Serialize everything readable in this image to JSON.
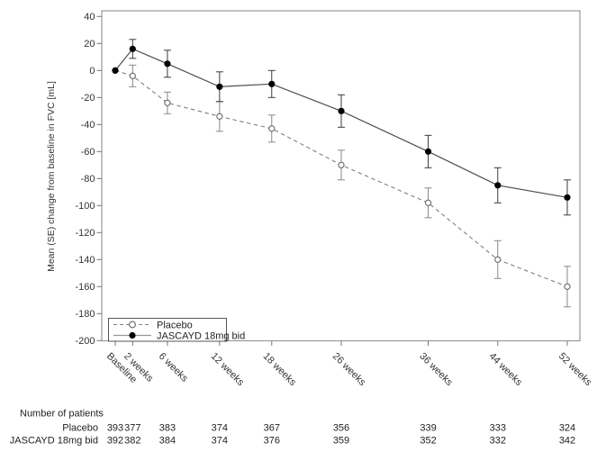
{
  "chart_data": {
    "type": "line",
    "title": "",
    "xlabel": "",
    "ylabel": "Mean (SE) change from baseline in FVC [mL]",
    "ylim": [
      -200,
      40
    ],
    "yticks": [
      40,
      20,
      0,
      -20,
      -40,
      -60,
      -80,
      -100,
      -120,
      -140,
      -160,
      -180,
      -200
    ],
    "categories": [
      "Baseline",
      "2 weeks",
      "6 weeks",
      "12 weeks",
      "18 weeks",
      "26 weeks",
      "36 weeks",
      "44 weeks",
      "52 weeks"
    ],
    "x_weeks": [
      0,
      2,
      6,
      12,
      18,
      26,
      36,
      44,
      52
    ],
    "grid": false,
    "legend_position": "lower-left",
    "frame_color": "#999999",
    "series": [
      {
        "name": "Placebo",
        "line_style": "dashed",
        "marker": "open-circle",
        "line_color": "#808080",
        "marker_color": "#666666",
        "errorbar_color": "#888888",
        "values": [
          0,
          -4,
          -24,
          -34,
          -43,
          -70,
          -98,
          -140,
          -160
        ],
        "se": [
          0,
          8,
          8,
          11,
          10,
          11,
          11,
          14,
          15
        ]
      },
      {
        "name": "JASCAYD 18mg bid",
        "line_style": "solid",
        "marker": "filled-circle",
        "line_color": "#4d4d4d",
        "marker_color": "#000000",
        "errorbar_color": "#3a3a3a",
        "values": [
          0,
          16,
          5,
          -12,
          -10,
          -30,
          -60,
          -85,
          -94
        ],
        "se": [
          0,
          7,
          10,
          11,
          10,
          12,
          12,
          13,
          13
        ]
      }
    ]
  },
  "patients_table": {
    "title": "Number of patients",
    "rows": [
      {
        "label": "Placebo",
        "counts": [
          393,
          377,
          383,
          374,
          367,
          356,
          339,
          333,
          324
        ]
      },
      {
        "label": "JASCAYD 18mg bid",
        "counts": [
          392,
          382,
          384,
          374,
          376,
          359,
          352,
          332,
          342
        ]
      }
    ]
  }
}
